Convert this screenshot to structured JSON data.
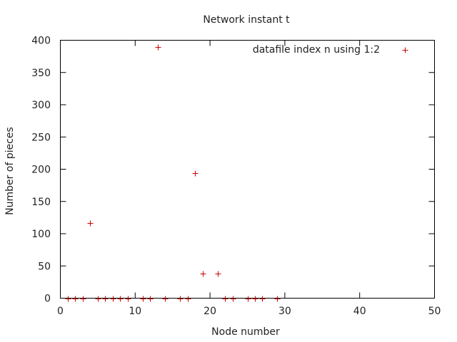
{
  "chart_data": {
    "type": "scatter",
    "title": "Network instant t",
    "xlabel": "Node number",
    "ylabel": "Number of pieces",
    "xlim": [
      0,
      50
    ],
    "ylim": [
      0,
      400
    ],
    "xticks": [
      0,
      10,
      20,
      30,
      40,
      50
    ],
    "yticks": [
      0,
      50,
      100,
      150,
      200,
      250,
      300,
      350,
      400
    ],
    "grid": false,
    "legend_position": "top-right",
    "series": [
      {
        "name": "datafile index n using 1:2",
        "color": "#cc0000",
        "marker": "plus",
        "points": [
          {
            "x": 1,
            "y": 0
          },
          {
            "x": 2,
            "y": 0
          },
          {
            "x": 3,
            "y": 0
          },
          {
            "x": 4,
            "y": 117
          },
          {
            "x": 5,
            "y": 0
          },
          {
            "x": 6,
            "y": 0
          },
          {
            "x": 7,
            "y": 0
          },
          {
            "x": 8,
            "y": 0
          },
          {
            "x": 9,
            "y": 0
          },
          {
            "x": 11,
            "y": 0
          },
          {
            "x": 12,
            "y": 0
          },
          {
            "x": 13,
            "y": 390
          },
          {
            "x": 14,
            "y": 0
          },
          {
            "x": 16,
            "y": 0
          },
          {
            "x": 17,
            "y": 0
          },
          {
            "x": 18,
            "y": 194
          },
          {
            "x": 19,
            "y": 38
          },
          {
            "x": 21,
            "y": 38
          },
          {
            "x": 22,
            "y": 0
          },
          {
            "x": 23,
            "y": 0
          },
          {
            "x": 25,
            "y": 0
          },
          {
            "x": 26,
            "y": 0
          },
          {
            "x": 27,
            "y": 0
          },
          {
            "x": 29,
            "y": 0
          },
          {
            "x": 46,
            "y": 385
          }
        ]
      }
    ]
  }
}
